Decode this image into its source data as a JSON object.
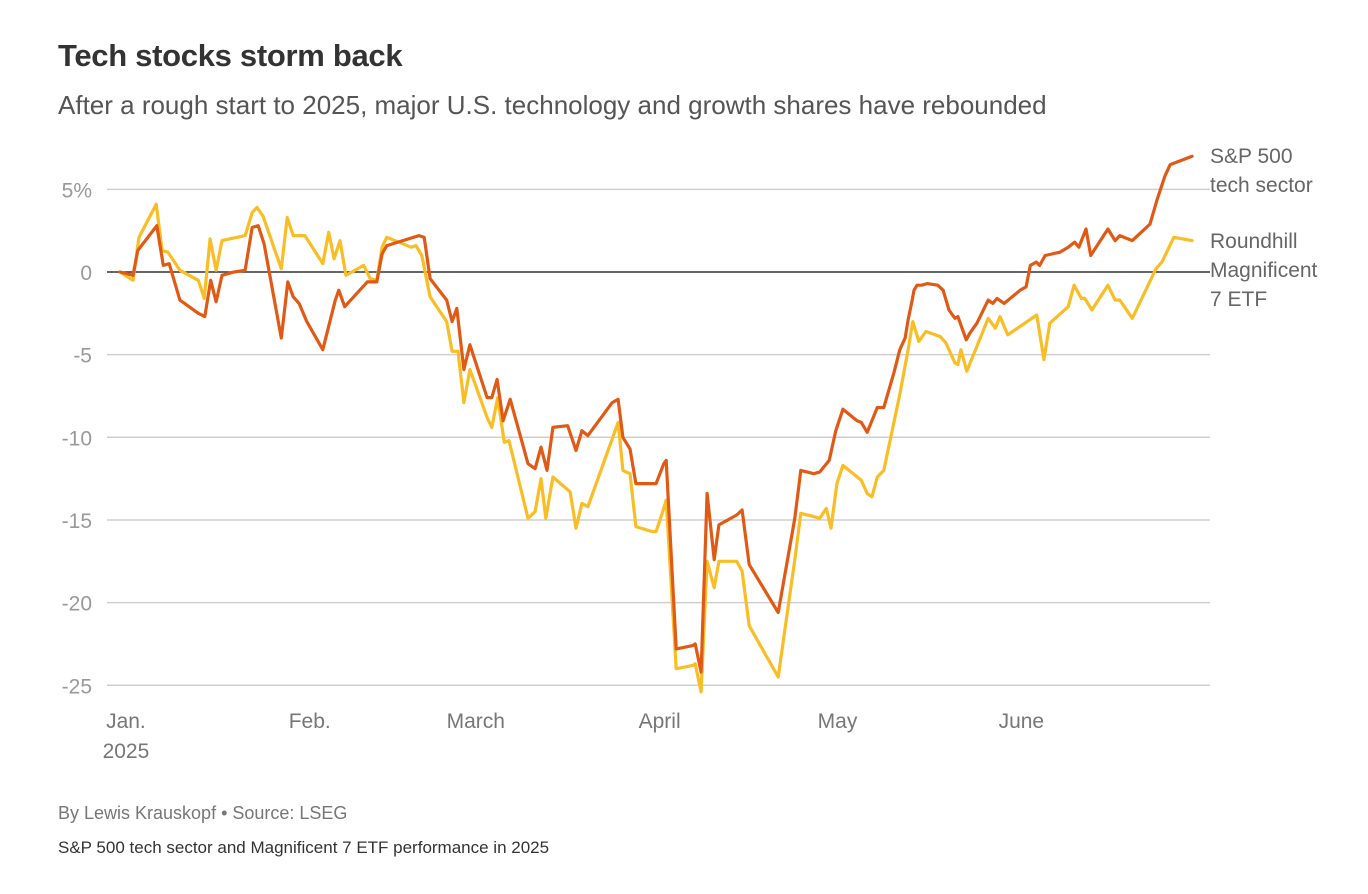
{
  "header": {
    "title": "Tech stocks storm back",
    "subtitle": "After a rough start to 2025, major U.S. technology and growth shares have rebounded"
  },
  "footer": {
    "byline": "By Lewis Krauskopf • Source: LSEG",
    "note": "S&P 500 tech sector and Magnificent 7 ETF performance in 2025"
  },
  "chart_data": {
    "type": "line",
    "title": "Tech stocks storm back",
    "xlabel": "",
    "ylabel": "",
    "x_unit": "day of 2025 (0 = Dec 31, 2024)",
    "xlim": [
      0,
      181
    ],
    "ylim": [
      -25,
      5
    ],
    "grid": true,
    "y_ticks": [
      {
        "value": 5,
        "label": "5%"
      },
      {
        "value": 0,
        "label": "0"
      },
      {
        "value": -5,
        "label": "-5"
      },
      {
        "value": -10,
        "label": "-10"
      },
      {
        "value": -15,
        "label": "-15"
      },
      {
        "value": -20,
        "label": "-20"
      },
      {
        "value": -25,
        "label": "-25"
      }
    ],
    "x_ticks": [
      {
        "value": 1,
        "label": "Jan.",
        "sublabel": "2025"
      },
      {
        "value": 32,
        "label": "Feb."
      },
      {
        "value": 60,
        "label": "March"
      },
      {
        "value": 91,
        "label": "April"
      },
      {
        "value": 121,
        "label": "May"
      },
      {
        "value": 152,
        "label": "June"
      }
    ],
    "legend_placement": "right (end of lines)",
    "series": [
      {
        "name": "S&P 500 tech sector",
        "label_lines": [
          "S&P 500",
          "tech sector"
        ],
        "color": "#e05a16",
        "points": [
          [
            0,
            0
          ],
          [
            2.2,
            -0.2
          ],
          [
            3,
            1.3
          ],
          [
            6.2,
            2.8
          ],
          [
            7.3,
            0.4
          ],
          [
            8.3,
            0.5
          ],
          [
            10.1,
            -1.7
          ],
          [
            13.2,
            -2.5
          ],
          [
            14.3,
            -2.7
          ],
          [
            15.3,
            -0.5
          ],
          [
            16.2,
            -1.8
          ],
          [
            17.2,
            -0.2
          ],
          [
            19.2,
            0
          ],
          [
            21.1,
            0.1
          ],
          [
            22.3,
            2.7
          ],
          [
            23.3,
            2.8
          ],
          [
            24.3,
            1.7
          ],
          [
            27.2,
            -4.0
          ],
          [
            28.3,
            -0.6
          ],
          [
            29.2,
            -1.5
          ],
          [
            30.2,
            -1.9
          ],
          [
            31.5,
            -3.0
          ],
          [
            34.2,
            -4.7
          ],
          [
            36.3,
            -1.7
          ],
          [
            36.9,
            -1.1
          ],
          [
            37.9,
            -2.1
          ],
          [
            41.7,
            -0.6
          ],
          [
            43.3,
            -0.6
          ],
          [
            44.2,
            1.1
          ],
          [
            45,
            1.6
          ],
          [
            50.4,
            2.2
          ],
          [
            51.3,
            2.1
          ],
          [
            52.3,
            -0.4
          ],
          [
            55.1,
            -1.7
          ],
          [
            56,
            -3.0
          ],
          [
            56.8,
            -2.2
          ],
          [
            58,
            -5.9
          ],
          [
            59,
            -4.4
          ],
          [
            61.9,
            -7.6
          ],
          [
            62.7,
            -7.6
          ],
          [
            63.6,
            -6.5
          ],
          [
            64.6,
            -9.0
          ],
          [
            65.8,
            -7.7
          ],
          [
            68.8,
            -11.6
          ],
          [
            70,
            -11.9
          ],
          [
            71,
            -10.6
          ],
          [
            72,
            -12.0
          ],
          [
            73,
            -9.4
          ],
          [
            75.5,
            -9.3
          ],
          [
            76.9,
            -10.8
          ],
          [
            77.9,
            -9.6
          ],
          [
            78.9,
            -9.9
          ],
          [
            83,
            -7.9
          ],
          [
            84,
            -7.7
          ],
          [
            84.8,
            -10.0
          ],
          [
            86,
            -10.7
          ],
          [
            87,
            -12.8
          ],
          [
            89.7,
            -12.8
          ],
          [
            90.4,
            -12.8
          ],
          [
            91.7,
            -11.6
          ],
          [
            92.1,
            -11.4
          ],
          [
            93.8,
            -22.8
          ],
          [
            96.6,
            -22.6
          ],
          [
            97,
            -22.5
          ],
          [
            98,
            -24.2
          ],
          [
            99,
            -13.4
          ],
          [
            100.2,
            -17.4
          ],
          [
            101,
            -15.3
          ],
          [
            104,
            -14.7
          ],
          [
            104.9,
            -14.4
          ],
          [
            106.1,
            -17.7
          ],
          [
            111,
            -20.6
          ],
          [
            113.8,
            -14.9
          ],
          [
            114.8,
            -12.0
          ],
          [
            117,
            -12.2
          ],
          [
            118,
            -12.1
          ],
          [
            119.6,
            -11.4
          ],
          [
            120.7,
            -9.6
          ],
          [
            121.9,
            -8.3
          ],
          [
            124.3,
            -9.0
          ],
          [
            125,
            -9.1
          ],
          [
            126,
            -9.7
          ],
          [
            127.7,
            -8.2
          ],
          [
            128.8,
            -8.2
          ],
          [
            130.5,
            -6.1
          ],
          [
            131.5,
            -4.7
          ],
          [
            132.4,
            -4.0
          ],
          [
            132.9,
            -2.9
          ],
          [
            133.6,
            -1.7
          ],
          [
            133.9,
            -1.1
          ],
          [
            134.4,
            -0.8
          ],
          [
            135.2,
            -0.8
          ],
          [
            136.1,
            -0.7
          ],
          [
            137.9,
            -0.8
          ],
          [
            138.8,
            -1.1
          ],
          [
            139.8,
            -2.3
          ],
          [
            140.8,
            -2.8
          ],
          [
            141.3,
            -2.7
          ],
          [
            142.7,
            -4.1
          ],
          [
            143.3,
            -3.7
          ],
          [
            144.5,
            -3.1
          ],
          [
            146.4,
            -1.7
          ],
          [
            147.2,
            -1.9
          ],
          [
            147.9,
            -1.6
          ],
          [
            149.1,
            -1.9
          ],
          [
            151.8,
            -1.1
          ],
          [
            152.8,
            -0.9
          ],
          [
            153.5,
            0.4
          ],
          [
            154.5,
            0.6
          ],
          [
            155.1,
            0.4
          ],
          [
            156,
            1.0
          ],
          [
            158.5,
            1.2
          ],
          [
            159.9,
            1.5
          ],
          [
            161,
            1.8
          ],
          [
            161.7,
            1.5
          ],
          [
            162.9,
            2.6
          ],
          [
            163.7,
            1.0
          ],
          [
            166.6,
            2.6
          ],
          [
            167.8,
            1.9
          ],
          [
            168.6,
            2.2
          ],
          [
            170.7,
            1.9
          ],
          [
            173.7,
            2.9
          ],
          [
            174.9,
            4.4
          ],
          [
            176.2,
            5.8
          ],
          [
            177.1,
            6.5
          ],
          [
            180.8,
            7.0
          ]
        ]
      },
      {
        "name": "Roundhill Magnificent 7 ETF",
        "label_lines": [
          "Roundhill",
          "Magnificent",
          "7 ETF"
        ],
        "color": "#f9bd25",
        "points": [
          [
            0,
            0
          ],
          [
            2.2,
            -0.5
          ],
          [
            3.2,
            2.1
          ],
          [
            6.1,
            4.1
          ],
          [
            7.1,
            1.3
          ],
          [
            8.1,
            1.2
          ],
          [
            10.1,
            0.1
          ],
          [
            13.2,
            -0.5
          ],
          [
            14.2,
            -1.6
          ],
          [
            15.2,
            2.0
          ],
          [
            16.2,
            0.1
          ],
          [
            17.2,
            1.9
          ],
          [
            21.1,
            2.2
          ],
          [
            22.3,
            3.6
          ],
          [
            23.1,
            3.9
          ],
          [
            24.1,
            3.4
          ],
          [
            27.2,
            0.2
          ],
          [
            28.2,
            3.3
          ],
          [
            29.2,
            2.2
          ],
          [
            31.2,
            2.2
          ],
          [
            34.2,
            0.5
          ],
          [
            35.2,
            2.4
          ],
          [
            36.1,
            0.8
          ],
          [
            37.1,
            1.9
          ],
          [
            38.1,
            -0.2
          ],
          [
            41.1,
            0.4
          ],
          [
            42.2,
            -0.4
          ],
          [
            43.3,
            -0.5
          ],
          [
            44.2,
            1.5
          ],
          [
            45,
            2.1
          ],
          [
            49.1,
            1.5
          ],
          [
            49.9,
            1.6
          ],
          [
            50.9,
            1.0
          ],
          [
            52.3,
            -1.5
          ],
          [
            55.1,
            -3.0
          ],
          [
            56,
            -4.8
          ],
          [
            57,
            -4.8
          ],
          [
            58,
            -7.9
          ],
          [
            59,
            -5.9
          ],
          [
            61.9,
            -8.8
          ],
          [
            62.7,
            -9.4
          ],
          [
            63.7,
            -7.6
          ],
          [
            64.8,
            -10.3
          ],
          [
            65.6,
            -10.2
          ],
          [
            68.8,
            -14.9
          ],
          [
            70,
            -14.5
          ],
          [
            71,
            -12.5
          ],
          [
            71.8,
            -14.9
          ],
          [
            73,
            -12.4
          ],
          [
            75.9,
            -13.3
          ],
          [
            76.9,
            -15.5
          ],
          [
            77.9,
            -14.0
          ],
          [
            78.9,
            -14.2
          ],
          [
            84,
            -9.1
          ],
          [
            84.8,
            -12.0
          ],
          [
            86,
            -12.2
          ],
          [
            87,
            -15.4
          ],
          [
            89.7,
            -15.7
          ],
          [
            90.4,
            -15.7
          ],
          [
            91.7,
            -14.3
          ],
          [
            92.1,
            -13.8
          ],
          [
            93.8,
            -24.0
          ],
          [
            96.6,
            -23.8
          ],
          [
            97,
            -23.7
          ],
          [
            98,
            -25.4
          ],
          [
            99,
            -17.5
          ],
          [
            100.2,
            -19.1
          ],
          [
            101,
            -17.5
          ],
          [
            104,
            -17.5
          ],
          [
            104.9,
            -18.1
          ],
          [
            106.1,
            -21.4
          ],
          [
            111,
            -24.5
          ],
          [
            113.8,
            -17.4
          ],
          [
            114.8,
            -14.6
          ],
          [
            117,
            -14.8
          ],
          [
            118,
            -14.9
          ],
          [
            119.1,
            -14.3
          ],
          [
            119.9,
            -15.5
          ],
          [
            120.9,
            -12.8
          ],
          [
            121.9,
            -11.7
          ],
          [
            125,
            -12.6
          ],
          [
            126,
            -13.4
          ],
          [
            126.8,
            -13.6
          ],
          [
            127.7,
            -12.4
          ],
          [
            128.8,
            -12.0
          ],
          [
            131.5,
            -7.4
          ],
          [
            132.9,
            -4.7
          ],
          [
            133.7,
            -3.0
          ],
          [
            134.7,
            -4.2
          ],
          [
            135.9,
            -3.6
          ],
          [
            138.3,
            -3.9
          ],
          [
            139.3,
            -4.3
          ],
          [
            140.8,
            -5.5
          ],
          [
            141.3,
            -5.6
          ],
          [
            141.8,
            -4.7
          ],
          [
            142.8,
            -6.0
          ],
          [
            146.4,
            -2.8
          ],
          [
            147.6,
            -3.4
          ],
          [
            148.4,
            -2.7
          ],
          [
            149.7,
            -3.8
          ],
          [
            154.6,
            -2.6
          ],
          [
            155.8,
            -5.3
          ],
          [
            156.8,
            -3.1
          ],
          [
            159.9,
            -2.1
          ],
          [
            160.9,
            -0.8
          ],
          [
            162.1,
            -1.6
          ],
          [
            162.7,
            -1.6
          ],
          [
            163.9,
            -2.3
          ],
          [
            166.6,
            -0.8
          ],
          [
            167.8,
            -1.7
          ],
          [
            168.6,
            -1.7
          ],
          [
            170.7,
            -2.8
          ],
          [
            174.7,
            0.2
          ],
          [
            175.7,
            0.6
          ],
          [
            177.7,
            2.1
          ],
          [
            180.8,
            1.9
          ]
        ]
      }
    ]
  }
}
